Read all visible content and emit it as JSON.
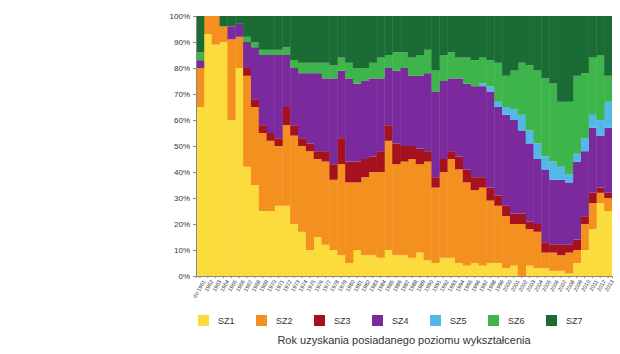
{
  "chart_data": {
    "type": "bar",
    "stacked": true,
    "legend": "bottom",
    "x_label": "Rok uzyskania posiadanego poziomu wykształcenia",
    "categories": [
      "do 1961",
      "1962",
      "1963",
      "1964",
      "1965",
      "1966",
      "1967",
      "1968",
      "1969",
      "1970",
      "1971",
      "1972",
      "1973",
      "1974",
      "1975",
      "1976",
      "1977",
      "1978",
      "1979",
      "1980",
      "1981",
      "1982",
      "1983",
      "1984",
      "1985",
      "1986",
      "1987",
      "1988",
      "1989",
      "1990",
      "1991",
      "1992",
      "1993",
      "1994",
      "1995",
      "1996",
      "1997",
      "1998",
      "1999",
      "2000",
      "2001",
      "2002",
      "2003",
      "2004",
      "2005",
      "2006",
      "2007",
      "2008",
      "2009",
      "2010",
      "2011",
      "2012",
      "2013"
    ],
    "ylim": [
      0,
      100
    ],
    "yticks": [
      {
        "value": 0,
        "label": "0%"
      },
      {
        "value": 10,
        "label": "10%"
      },
      {
        "value": 20,
        "label": "20%"
      },
      {
        "value": 30,
        "label": "30%"
      },
      {
        "value": 40,
        "label": "40%"
      },
      {
        "value": 50,
        "label": "50%"
      },
      {
        "value": 60,
        "label": "60%"
      },
      {
        "value": 70,
        "label": "70%"
      },
      {
        "value": 80,
        "label": "80%"
      },
      {
        "value": 90,
        "label": "90%"
      },
      {
        "value": 100,
        "label": "100%"
      }
    ],
    "series": [
      {
        "name": "SZ1",
        "color": "#fcdc3c",
        "values": [
          65,
          93,
          89,
          90,
          60,
          80,
          42,
          35,
          25,
          25,
          27,
          27,
          20,
          17,
          10,
          15,
          12,
          10,
          8,
          5,
          10,
          8,
          8,
          7,
          10,
          8,
          8,
          7,
          9,
          6,
          5,
          7,
          7,
          5,
          4,
          5,
          4,
          5,
          5,
          3,
          4,
          0,
          4,
          3,
          3,
          2,
          2,
          1,
          5,
          10,
          18,
          28,
          25
        ]
      },
      {
        "name": "SZ2",
        "color": "#f39020",
        "values": [
          15,
          7,
          11,
          6,
          31,
          12,
          35,
          30,
          30,
          27,
          23,
          31,
          34,
          33,
          38,
          30,
          32,
          27,
          35,
          31,
          26,
          30,
          32,
          33,
          42,
          35,
          36,
          38,
          34,
          38,
          29,
          33,
          38,
          36,
          32,
          28,
          30,
          24,
          22,
          20,
          16,
          20,
          14,
          14,
          6,
          7,
          6,
          8,
          5,
          10,
          10,
          4,
          5
        ]
      },
      {
        "name": "SZ3",
        "color": "#a5121e",
        "values": [
          0,
          0,
          0,
          0,
          0,
          0,
          3,
          3,
          3,
          3,
          3,
          7,
          4,
          3,
          3,
          3,
          4,
          6,
          10,
          8,
          8,
          7,
          6,
          8,
          6,
          8,
          6,
          5,
          6,
          4,
          4,
          5,
          3,
          5,
          5,
          5,
          4,
          5,
          4,
          4,
          4,
          4,
          3,
          3,
          4,
          3,
          4,
          3,
          4,
          3,
          4,
          2,
          2
        ]
      },
      {
        "name": "SZ4",
        "color": "#7a2a9c",
        "values": [
          3,
          0,
          0,
          0,
          5,
          5,
          10,
          20,
          27,
          30,
          32,
          20,
          22,
          25,
          27,
          30,
          28,
          33,
          26,
          32,
          30,
          30,
          30,
          28,
          22,
          28,
          30,
          27,
          28,
          30,
          33,
          30,
          28,
          30,
          33,
          35,
          35,
          37,
          34,
          35,
          36,
          32,
          30,
          25,
          28,
          25,
          25,
          24,
          30,
          25,
          25,
          20,
          25
        ]
      },
      {
        "name": "SZ5",
        "color": "#52b8e8",
        "values": [
          0,
          0,
          0,
          0,
          0,
          0,
          0,
          0,
          0,
          0,
          0,
          0,
          0,
          0,
          0,
          0,
          0,
          0,
          0,
          0,
          0,
          0,
          0,
          0,
          0,
          0,
          0,
          0,
          0,
          0,
          0,
          0,
          0,
          0,
          0,
          0,
          1,
          2,
          2,
          3,
          4,
          6,
          5,
          6,
          5,
          7,
          5,
          3,
          3,
          5,
          5,
          6,
          10
        ]
      },
      {
        "name": "SZ6",
        "color": "#3db54a",
        "values": [
          3,
          0,
          0,
          0,
          0,
          0,
          2,
          2,
          2,
          2,
          2,
          3,
          3,
          4,
          4,
          4,
          6,
          5,
          5,
          6,
          6,
          5,
          6,
          8,
          5,
          7,
          6,
          7,
          8,
          9,
          8,
          10,
          10,
          8,
          10,
          10,
          10,
          10,
          15,
          12,
          15,
          20,
          25,
          28,
          30,
          30,
          25,
          28,
          30,
          25,
          22,
          25,
          10
        ]
      },
      {
        "name": "SZ7",
        "color": "#1a6b34",
        "values": [
          14,
          0,
          0,
          4,
          4,
          3,
          8,
          10,
          13,
          13,
          13,
          12,
          17,
          18,
          18,
          18,
          18,
          19,
          16,
          18,
          20,
          20,
          18,
          16,
          15,
          14,
          14,
          16,
          15,
          13,
          21,
          15,
          14,
          16,
          16,
          17,
          16,
          17,
          18,
          23,
          21,
          18,
          19,
          21,
          24,
          26,
          33,
          33,
          23,
          22,
          16,
          15,
          23
        ]
      }
    ]
  }
}
